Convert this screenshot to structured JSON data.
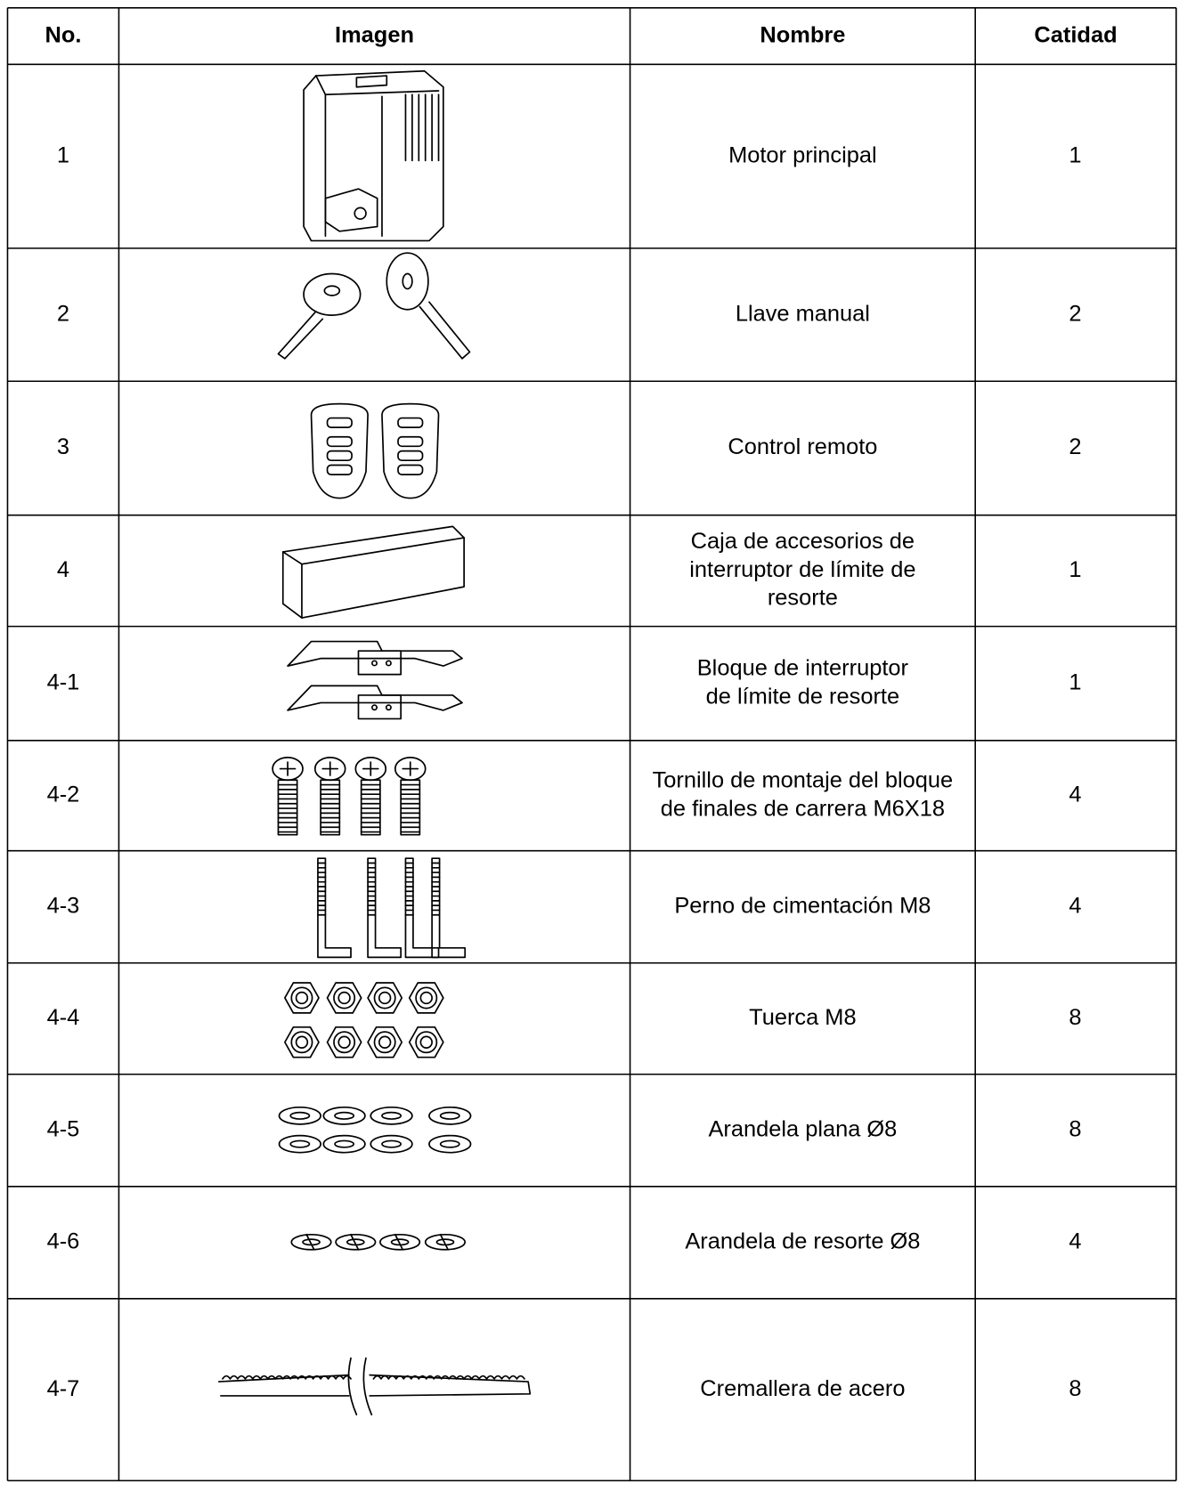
{
  "table": {
    "header": [
      "No.",
      "Imagen",
      "Nombre",
      "Catidad"
    ],
    "rows": [
      {
        "no": "1",
        "name": [
          "Motor principal"
        ],
        "qty": 1
      },
      {
        "no": "2",
        "name": [
          "Llave manual"
        ],
        "qty": 2
      },
      {
        "no": "3",
        "name": [
          "Control remoto"
        ],
        "qty": 2
      },
      {
        "no": "4",
        "name": [
          "Caja de accesorios de",
          "interruptor de límite de",
          "resorte"
        ],
        "qty": 1
      },
      {
        "no": "4-1",
        "name": [
          "Bloque de interruptor",
          "de límite de resorte"
        ],
        "qty": 1
      },
      {
        "no": "4-2",
        "name": [
          "Tornillo de montaje del bloque",
          "de finales de carrera M6X18"
        ],
        "qty": 4
      },
      {
        "no": "4-3",
        "name": [
          "Perno de cimentación M8"
        ],
        "qty": 4
      },
      {
        "no": "4-4",
        "name": [
          "Tuerca M8"
        ],
        "qty": 8
      },
      {
        "no": "4-5",
        "name": [
          "Arandela plana Ø8"
        ],
        "qty": 8
      },
      {
        "no": "4-6",
        "name": [
          "Arandela de resorte Ø8"
        ],
        "qty": 4
      },
      {
        "no": "4-7",
        "name": [
          "Cremallera de acero"
        ],
        "qty": 8
      }
    ]
  }
}
